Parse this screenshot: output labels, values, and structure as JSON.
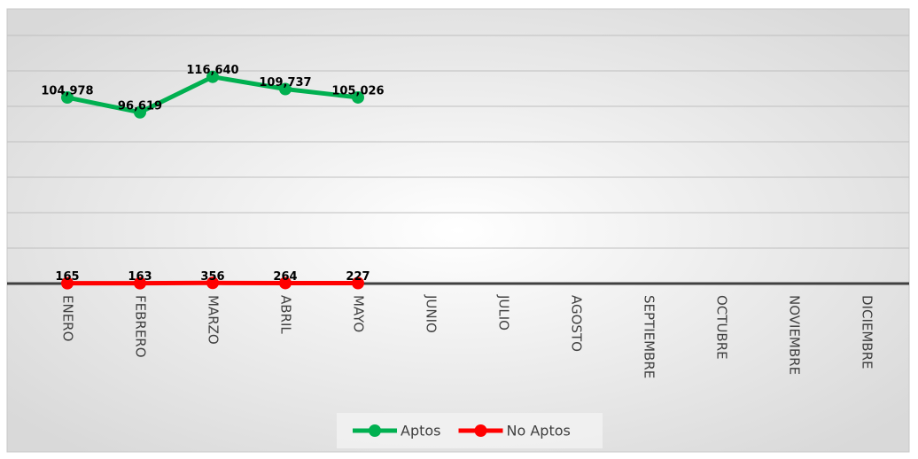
{
  "chart_data": {
    "type": "line",
    "categories": [
      "ENERO",
      "FEBRERO",
      "MARZO",
      "ABRIL",
      "MAYO",
      "JUNIO",
      "JULIO",
      "AGOSTO",
      "SEPTIEMBRE",
      "OCTUBRE",
      "NOVIEMBRE",
      "DICIEMBRE"
    ],
    "series": [
      {
        "name": "Aptos",
        "color": "#00b050",
        "values": [
          104978,
          96619,
          116640,
          109737,
          105026,
          null,
          null,
          null,
          null,
          null,
          null,
          null
        ],
        "value_labels": [
          "104,978",
          "96,619",
          "116,640",
          "109,737",
          "105,026",
          null,
          null,
          null,
          null,
          null,
          null,
          null
        ]
      },
      {
        "name": "No Aptos",
        "color": "#ff0000",
        "values": [
          165,
          163,
          356,
          264,
          227,
          null,
          null,
          null,
          null,
          null,
          null,
          null
        ]
      }
    ],
    "ylim": [
      0,
      140000
    ],
    "yticks": [
      0,
      20000,
      40000,
      60000,
      80000,
      100000,
      120000,
      140000
    ],
    "grid": true,
    "legend": "bottom"
  }
}
